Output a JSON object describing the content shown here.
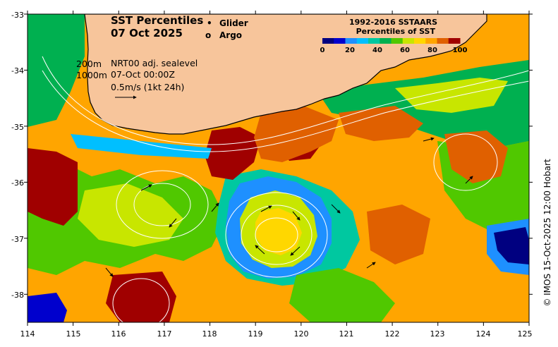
{
  "title": {
    "line1": "SST Percentiles",
    "line2": "07 Oct 2025"
  },
  "legend": {
    "glider_symbol": "•",
    "glider_label": "Glider",
    "argo_symbol": "o",
    "argo_label": "Argo",
    "marker_color": "#ff00ff"
  },
  "colorbar": {
    "title_line1": "1992-2016 SSTAARS",
    "title_line2": "Percentiles of SST",
    "ticks": [
      "0",
      "20",
      "40",
      "60",
      "80",
      "100"
    ],
    "colors": [
      "#000080",
      "#0000cd",
      "#1e90ff",
      "#00bfff",
      "#00c8a0",
      "#00b050",
      "#50c800",
      "#c8e600",
      "#ffd700",
      "#ffa500",
      "#e06000",
      "#a00000"
    ]
  },
  "info": {
    "contour_200": "200m",
    "contour_1000": "1000m",
    "source": "NRT00 adj. sealevel",
    "datetime": "07-Oct 00:00Z",
    "vector_scale": "0.5m/s (1kt 24h)"
  },
  "axes": {
    "x_ticks": [
      "114",
      "115",
      "116",
      "117",
      "118",
      "119",
      "120",
      "121",
      "122",
      "123",
      "124",
      "125"
    ],
    "y_ticks": [
      "-33",
      "-34",
      "-35",
      "-36",
      "-37",
      "-38"
    ],
    "xlim": [
      114,
      125
    ],
    "ylim": [
      -38.5,
      -33
    ]
  },
  "credit": "© IMOS 15-Oct-2025 12:00 Hobart",
  "colors": {
    "land": "#f7c59b"
  }
}
